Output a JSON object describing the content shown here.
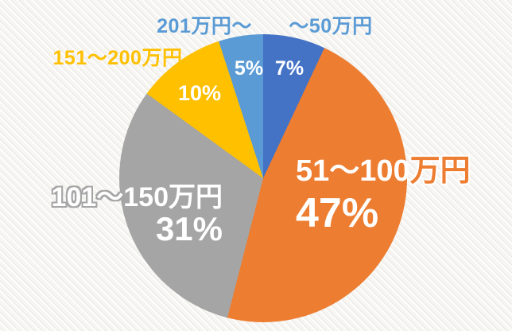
{
  "chart_data": {
    "type": "pie",
    "categories": [
      "〜50万円",
      "51〜100万円",
      "101〜150万円",
      "151〜200万円",
      "201万円〜"
    ],
    "values": [
      7,
      47,
      31,
      10,
      5
    ],
    "unit": "%",
    "colors": [
      "#4472C4",
      "#ED7D31",
      "#A5A5A5",
      "#FFC000",
      "#5B9BD5"
    ],
    "start_angle_deg": 0,
    "direction": "clockwise",
    "legend_position": "callout-labels"
  },
  "labels": {
    "cat_201": "201万円〜",
    "cat_50": "〜50万円",
    "cat_151_200": "151〜200万円",
    "pct_5": "5%",
    "pct_7": "7%",
    "pct_10": "10%",
    "gray_category": "101〜150万円",
    "gray_pct": "31%",
    "orange_category_main": "51〜100",
    "orange_category_suffix": "万円",
    "orange_pct": "47%"
  },
  "colors": {
    "blue": "#4472C4",
    "orange": "#ED7D31",
    "gray": "#A5A5A5",
    "gold": "#FFC000",
    "light_blue": "#5B9BD5",
    "background": "#f6f5f2",
    "label_white": "#ffffff"
  }
}
